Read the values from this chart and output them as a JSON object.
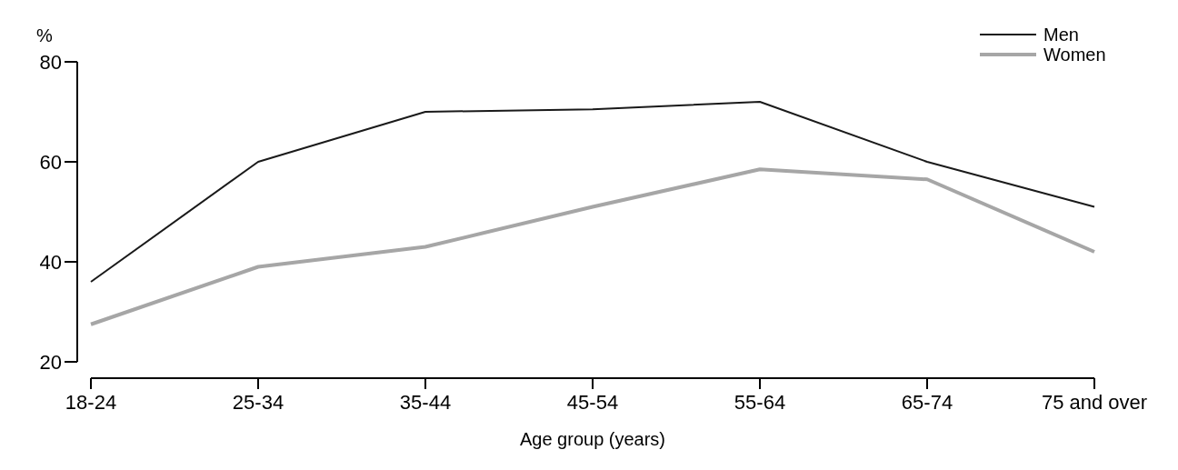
{
  "chart_data": {
    "type": "line",
    "xlabel": "Age group (years)",
    "ylabel": "%",
    "categories": [
      "18-24",
      "25-34",
      "35-44",
      "45-54",
      "55-64",
      "65-74",
      "75 and over"
    ],
    "series": [
      {
        "name": "Men",
        "color": "#1a1a1a",
        "values": [
          36,
          60,
          70,
          70.5,
          72,
          60,
          51
        ]
      },
      {
        "name": "Women",
        "color": "#a6a6a6",
        "values": [
          27.5,
          39,
          43,
          51,
          58.5,
          56.5,
          42
        ]
      }
    ],
    "ylim": [
      20,
      80
    ],
    "yticks": [
      20,
      40,
      60,
      80
    ],
    "legend": "top right",
    "grid": false
  }
}
